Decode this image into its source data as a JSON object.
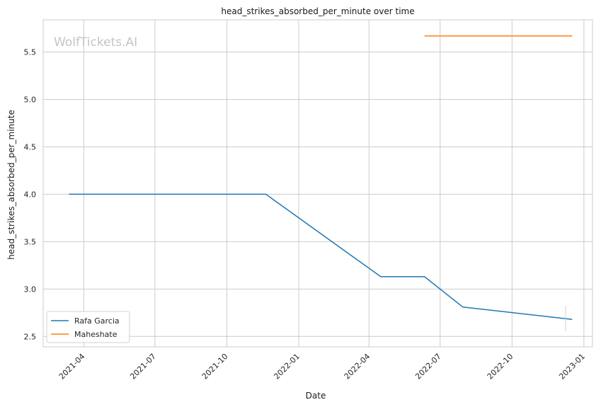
{
  "chart_data": {
    "type": "line",
    "title": "head_strikes_absorbed_per_minute over time",
    "xlabel": "Date",
    "ylabel": "head_strikes_absorbed_per_minute",
    "watermark": "WolfTickets.AI",
    "xlim": [
      "2021-02-08",
      "2023-01-12"
    ],
    "ylim": [
      2.39,
      5.84
    ],
    "x_ticks": [
      "2021-04",
      "2021-07",
      "2021-10",
      "2022-01",
      "2022-04",
      "2022-07",
      "2022-10",
      "2023-01"
    ],
    "y_ticks": [
      "2.5",
      "3.0",
      "3.5",
      "4.0",
      "4.5",
      "5.0",
      "5.5"
    ],
    "grid": true,
    "legend_position": "lower-left",
    "series": [
      {
        "name": "Rafa Garcia",
        "color": "#1f77b4",
        "points": [
          {
            "x": "2021-03-13",
            "y": 4.0
          },
          {
            "x": "2021-11-20",
            "y": 4.0
          },
          {
            "x": "2022-04-16",
            "y": 3.13
          },
          {
            "x": "2022-06-11",
            "y": 3.13
          },
          {
            "x": "2022-07-30",
            "y": 2.81
          },
          {
            "x": "2022-12-17",
            "y": 2.68
          }
        ]
      },
      {
        "name": "Maheshate",
        "color": "#ff7f0e",
        "points": [
          {
            "x": "2022-06-11",
            "y": 5.67
          },
          {
            "x": "2022-12-17",
            "y": 5.67
          }
        ]
      }
    ]
  }
}
